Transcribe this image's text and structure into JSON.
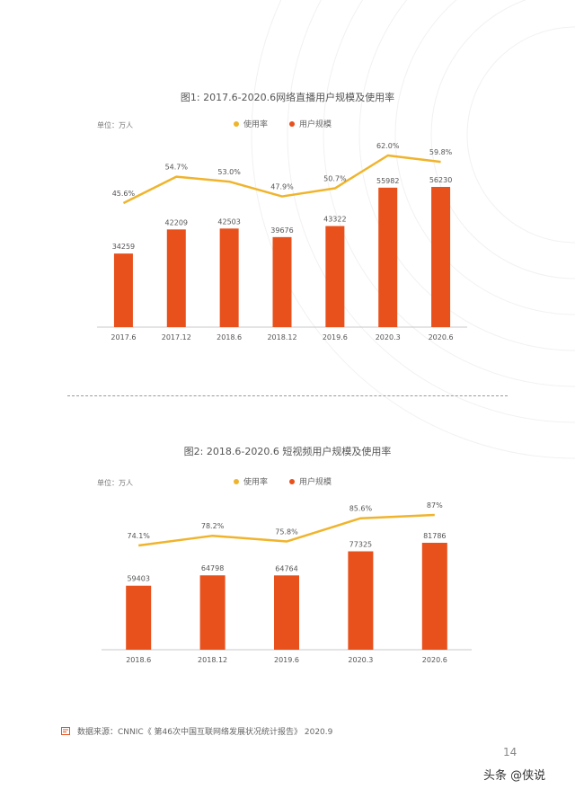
{
  "colors": {
    "bar": "#e8501c",
    "line": "#f0b42c",
    "axis": "#c8c8c8",
    "text": "#555555"
  },
  "legend": {
    "rate_label": "使用率",
    "users_label": "用户规模",
    "rate_icon": "yellow-dot",
    "users_icon": "orange-dot"
  },
  "chart_data": [
    {
      "type": "bar",
      "title": "图1: 2017.6-2020.6网络直播用户规模及使用率",
      "unit": "单位：万人",
      "categories": [
        "2017.6",
        "2017.12",
        "2018.6",
        "2018.12",
        "2019.6",
        "2020.3",
        "2020.6"
      ],
      "series": [
        {
          "name": "用户规模",
          "type": "bar",
          "values": [
            34259,
            42209,
            42503,
            39676,
            43322,
            55982,
            56230
          ],
          "labels": [
            "34259",
            "42209",
            "42503",
            "39676",
            "43322",
            "55982",
            "56230"
          ]
        },
        {
          "name": "使用率",
          "type": "line",
          "values": [
            45.6,
            54.7,
            53.0,
            47.9,
            50.7,
            62.0,
            59.8
          ],
          "labels": [
            "45.6%",
            "54.7%",
            "53.0%",
            "47.9%",
            "50.7%",
            "62.0%",
            "59.8%"
          ]
        }
      ]
    },
    {
      "type": "bar",
      "title": "图2: 2018.6-2020.6 短视频用户规模及使用率",
      "unit": "单位：万人",
      "categories": [
        "2018.6",
        "2018.12",
        "2019.6",
        "2020.3",
        "2020.6"
      ],
      "series": [
        {
          "name": "用户规模",
          "type": "bar",
          "values": [
            59403,
            64798,
            64764,
            77325,
            81786
          ],
          "labels": [
            "59403",
            "64798",
            "64764",
            "77325",
            "81786"
          ]
        },
        {
          "name": "使用率",
          "type": "line",
          "values": [
            74.1,
            78.2,
            75.8,
            85.6,
            87
          ],
          "labels": [
            "74.1%",
            "78.2%",
            "75.8%",
            "85.6%",
            "87%"
          ]
        }
      ]
    }
  ],
  "footer": {
    "source": "数据来源：CNNIC《 第46次中国互联网络发展状况统计报告》 2020.9",
    "page_number": "14",
    "watermark": "头条 @侠说"
  }
}
